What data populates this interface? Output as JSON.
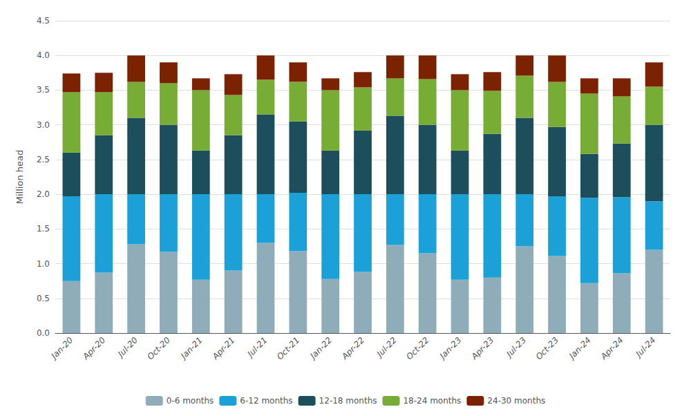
{
  "chart_data": {
    "type": "bar",
    "stacked": true,
    "categories": [
      "Jan-20",
      "Apr-20",
      "Jul-20",
      "Oct-20",
      "Jan-21",
      "Apr-21",
      "Jul-21",
      "Oct-21",
      "Jan-22",
      "Apr-22",
      "Jul-22",
      "Oct-22",
      "Jan-23",
      "Apr-23",
      "Jul-23",
      "Oct-23",
      "Jan-24",
      "Apr-24",
      "Jul-24"
    ],
    "series": [
      {
        "name": "0-6 months",
        "color": "#8FADB8",
        "values": [
          0.75,
          0.87,
          1.28,
          1.17,
          0.77,
          0.9,
          1.3,
          1.18,
          0.78,
          0.88,
          1.27,
          1.15,
          0.77,
          0.8,
          1.25,
          1.11,
          0.72,
          0.86,
          1.2
        ]
      },
      {
        "name": "6-12 months",
        "color": "#1BA0D8",
        "values": [
          1.22,
          1.13,
          0.72,
          0.83,
          1.23,
          1.1,
          0.7,
          0.84,
          1.22,
          1.12,
          0.73,
          0.85,
          1.23,
          1.2,
          0.75,
          0.86,
          1.23,
          1.1,
          0.7
        ]
      },
      {
        "name": "12-18 months",
        "color": "#1C4E5C",
        "values": [
          0.63,
          0.85,
          1.1,
          1.0,
          0.63,
          0.85,
          1.15,
          1.03,
          0.63,
          0.92,
          1.13,
          1.0,
          0.63,
          0.87,
          1.1,
          1.0,
          0.63,
          0.77,
          1.1
        ]
      },
      {
        "name": "18-24 months",
        "color": "#77AC35",
        "values": [
          0.87,
          0.62,
          0.52,
          0.6,
          0.87,
          0.58,
          0.5,
          0.57,
          0.87,
          0.62,
          0.54,
          0.66,
          0.87,
          0.62,
          0.61,
          0.65,
          0.87,
          0.68,
          0.55
        ]
      },
      {
        "name": "24-30 months",
        "color": "#7B2200",
        "values": [
          0.27,
          0.28,
          0.38,
          0.3,
          0.17,
          0.3,
          0.35,
          0.28,
          0.17,
          0.22,
          0.33,
          0.34,
          0.23,
          0.27,
          0.29,
          0.38,
          0.22,
          0.26,
          0.35
        ]
      }
    ],
    "ylabel": "Million head",
    "ylim": [
      0,
      4.5
    ],
    "yticks": [
      {
        "value": 0,
        "label": "0.0"
      },
      0.5,
      {
        "value": 1,
        "label": "1.0"
      },
      1.5,
      {
        "value": 2,
        "label": "2.0"
      },
      2.5,
      {
        "value": 3,
        "label": "3.0"
      },
      3.5,
      {
        "value": 4,
        "label": "4.0"
      },
      4.5
    ],
    "grid": true,
    "legend": "bottom"
  }
}
